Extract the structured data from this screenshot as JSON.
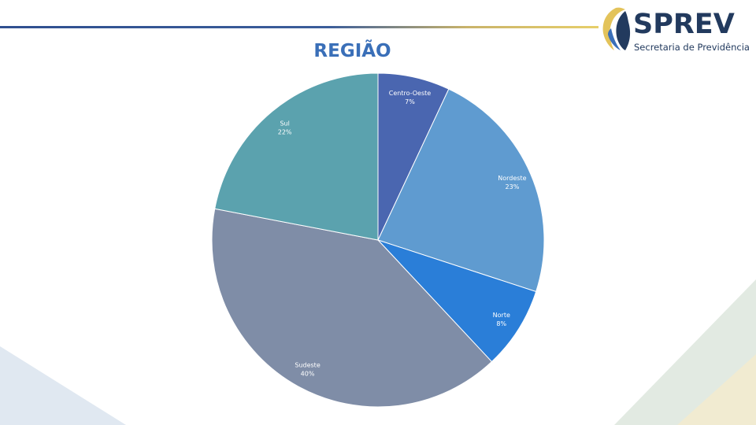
{
  "brand": {
    "name": "SPREV",
    "subtitle": "Secretaria de Previdência",
    "colors": {
      "navy": "#223a5e",
      "gold": "#e3c35a",
      "accent": "#3a6fb8"
    }
  },
  "chart_data": {
    "type": "pie",
    "title": "REGIÃO",
    "slices": [
      {
        "category": "Centro-Oeste",
        "value": 7,
        "label": "7%",
        "color": "#4a66b0"
      },
      {
        "category": "Nordeste",
        "value": 23,
        "label": "23%",
        "color": "#5f9bd0"
      },
      {
        "category": "Norte",
        "value": 8,
        "label": "8%",
        "color": "#2a7ed8"
      },
      {
        "category": "Sudeste",
        "value": 40,
        "label": "40%",
        "color": "#7f8da7"
      },
      {
        "category": "Sul",
        "value": 22,
        "label": "22%",
        "color": "#5ba2ae"
      }
    ],
    "legend": "none"
  }
}
